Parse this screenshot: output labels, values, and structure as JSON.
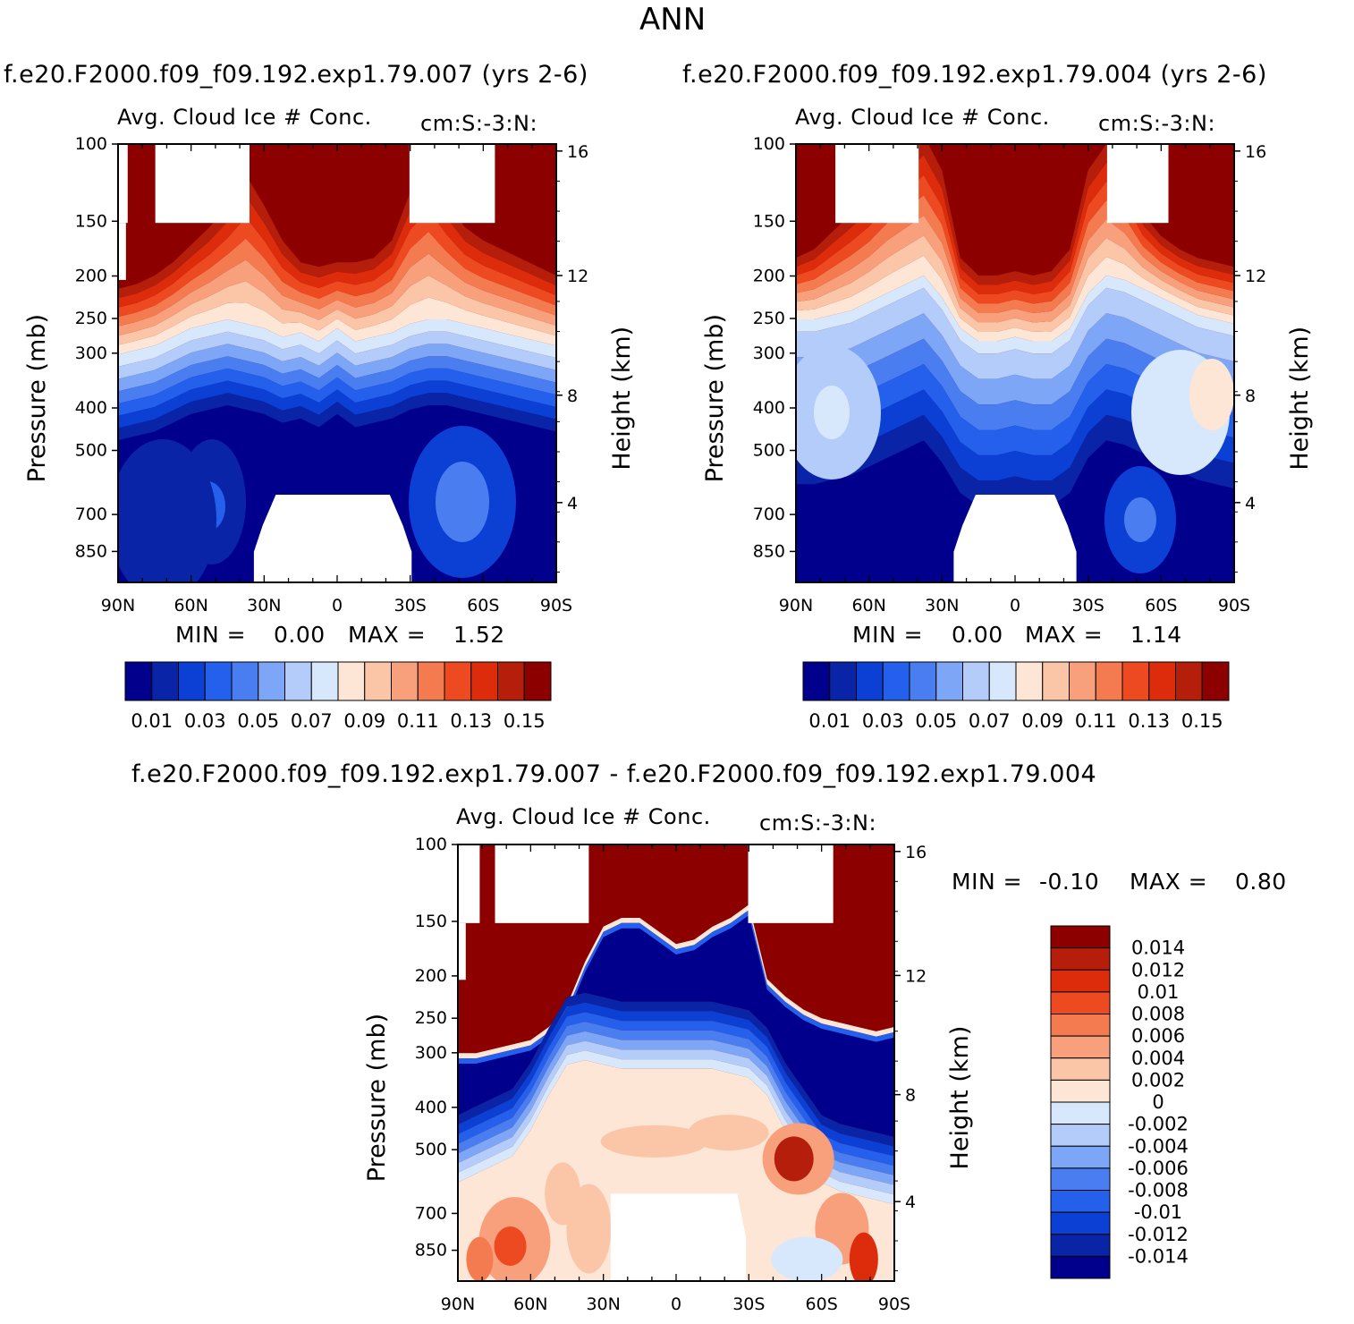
{
  "page": {
    "title": "ANN",
    "left_header": "f.e20.F2000.f09_f09.192.exp1.79.007 (yrs 2-6)",
    "right_header": "f.e20.F2000.f09_f09.192.exp1.79.004 (yrs 2-6)",
    "diff_header": "f.e20.F2000.f09_f09.192.exp1.79.007 - f.e20.F2000.f09_f09.192.exp1.79.004"
  },
  "panels": {
    "left": {
      "subtitle": "Avg. Cloud Ice # Conc.",
      "units": "cm:S:-3:N:",
      "min_label": "MIN =",
      "min_value": "0.00",
      "max_label": "MAX =",
      "max_value": "1.52"
    },
    "right": {
      "subtitle": "Avg. Cloud Ice # Conc.",
      "units": "cm:S:-3:N:",
      "min_label": "MIN =",
      "min_value": "0.00",
      "max_label": "MAX =",
      "max_value": "1.14"
    },
    "diff": {
      "subtitle": "Avg. Cloud Ice # Conc.",
      "units": "cm:S:-3:N:",
      "min_label": "MIN =",
      "min_value": "-0.10",
      "max_label": "MAX =",
      "max_value": "0.80"
    }
  },
  "axes": {
    "ylabel_left": "Pressure (mb)",
    "ylabel_right": "Height (km)",
    "pressure_ticks": [
      "100",
      "150",
      "200",
      "250",
      "300",
      "400",
      "500",
      "700",
      "850"
    ],
    "height_ticks": [
      "16",
      "12",
      "8",
      "4"
    ],
    "lat_ticks": [
      "90N",
      "60N",
      "30N",
      "0",
      "30S",
      "60S",
      "90S"
    ]
  },
  "colorbars": {
    "main_colors": [
      "#00008c",
      "#0a24a8",
      "#0c40d4",
      "#2460ec",
      "#4a7ef0",
      "#7ea6f6",
      "#b4ccfa",
      "#d8e8fc",
      "#fde6d6",
      "#fbc6a8",
      "#f8a07c",
      "#f47a50",
      "#ee4a22",
      "#dc2c0c",
      "#b41e0a",
      "#8c0000"
    ],
    "main_labels": [
      "0.01",
      "0.03",
      "0.05",
      "0.07",
      "0.09",
      "0.11",
      "0.13",
      "0.15"
    ],
    "diff_colors": [
      "#8c0000",
      "#b41e0a",
      "#dc2c0c",
      "#ee4a22",
      "#f47a50",
      "#f8a07c",
      "#fbc6a8",
      "#fde6d6",
      "#d8e8fc",
      "#b4ccfa",
      "#7ea6f6",
      "#4a7ef0",
      "#2460ec",
      "#0c40d4",
      "#0a24a8",
      "#00008c"
    ],
    "diff_labels": [
      "0.014",
      "0.012",
      "0.01",
      "0.008",
      "0.006",
      "0.004",
      "0.002",
      "0",
      "-0.002",
      "-0.004",
      "-0.006",
      "-0.008",
      "-0.01",
      "-0.012",
      "-0.014"
    ]
  },
  "chart_data": [
    {
      "type": "heatmap",
      "title": "Avg. Cloud Ice # Conc.",
      "units": "cm:S:-3:N:",
      "xlabel": "",
      "ylabel": "Pressure (mb)",
      "y2label": "Height (km)",
      "x_ticks": [
        "90N",
        "60N",
        "30N",
        "0",
        "30S",
        "60S",
        "90S"
      ],
      "y_ticks": [
        100,
        150,
        200,
        250,
        300,
        400,
        500,
        700,
        850
      ],
      "y2_ticks": [
        16,
        12,
        8,
        4
      ],
      "xlim": [
        -90,
        90
      ],
      "ylim_mb": [
        100,
        1000
      ],
      "min": 0.0,
      "max": 1.52,
      "colorbar_levels": [
        0.01,
        0.03,
        0.05,
        0.07,
        0.09,
        0.11,
        0.13,
        0.15
      ]
    },
    {
      "type": "heatmap",
      "title": "Avg. Cloud Ice # Conc.",
      "units": "cm:S:-3:N:",
      "xlabel": "",
      "ylabel": "Pressure (mb)",
      "y2label": "Height (km)",
      "x_ticks": [
        "90N",
        "60N",
        "30N",
        "0",
        "30S",
        "60S",
        "90S"
      ],
      "y_ticks": [
        100,
        150,
        200,
        250,
        300,
        400,
        500,
        700,
        850
      ],
      "y2_ticks": [
        16,
        12,
        8,
        4
      ],
      "xlim": [
        -90,
        90
      ],
      "ylim_mb": [
        100,
        1000
      ],
      "min": 0.0,
      "max": 1.14,
      "colorbar_levels": [
        0.01,
        0.03,
        0.05,
        0.07,
        0.09,
        0.11,
        0.13,
        0.15
      ]
    },
    {
      "type": "heatmap",
      "title": "Avg. Cloud Ice # Conc.",
      "units": "cm:S:-3:N:",
      "xlabel": "",
      "ylabel": "Pressure (mb)",
      "y2label": "Height (km)",
      "x_ticks": [
        "90N",
        "60N",
        "30N",
        "0",
        "30S",
        "60S",
        "90S"
      ],
      "y_ticks": [
        100,
        150,
        200,
        250,
        300,
        400,
        500,
        700,
        850
      ],
      "y2_ticks": [
        16,
        12,
        8,
        4
      ],
      "xlim": [
        -90,
        90
      ],
      "ylim_mb": [
        100,
        1000
      ],
      "min": -0.1,
      "max": 0.8,
      "colorbar_levels": [
        -0.014,
        -0.012,
        -0.01,
        -0.008,
        -0.006,
        -0.004,
        -0.002,
        0,
        0.002,
        0.004,
        0.006,
        0.008,
        0.01,
        0.012,
        0.014
      ]
    }
  ]
}
